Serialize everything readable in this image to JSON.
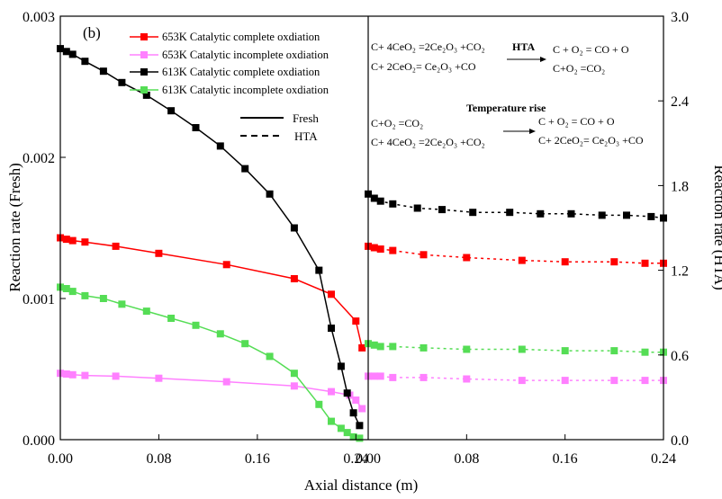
{
  "chart_data": {
    "type": "line",
    "panel_label": "(b)",
    "xlabel": "Axial distance (m)",
    "ylabel_left": "Reaction rate (Fresh)",
    "ylabel_right": "Reaction rate (HTA)",
    "left_panel": {
      "xlim": [
        0,
        0.25
      ],
      "xticks": [
        "0.00",
        "0.08",
        "0.16",
        "0.24"
      ],
      "ylim": [
        0,
        0.003
      ],
      "yticks": [
        "0.000",
        "0.001",
        "0.002",
        "0.003"
      ]
    },
    "right_panel": {
      "xlim": [
        0,
        0.24
      ],
      "xticks": [
        "0.00",
        "0.08",
        "0.16",
        "0.24"
      ],
      "ylim": [
        0,
        3.0
      ],
      "yticks": [
        "0.0",
        "0.6",
        "1.2",
        "1.8",
        "2.4",
        "3.0"
      ]
    },
    "series": [
      {
        "name": "653K Catalytic complete oxdiation",
        "color": "#ff0000",
        "fresh": {
          "x": [
            0.0,
            0.005,
            0.01,
            0.02,
            0.045,
            0.08,
            0.135,
            0.19,
            0.22,
            0.24,
            0.245
          ],
          "y": [
            0.00143,
            0.00142,
            0.00141,
            0.0014,
            0.00137,
            0.00132,
            0.00124,
            0.00114,
            0.00103,
            0.00084,
            0.00065
          ]
        },
        "hta": {
          "x": [
            0.0,
            0.005,
            0.01,
            0.02,
            0.045,
            0.08,
            0.125,
            0.16,
            0.2,
            0.225,
            0.24
          ],
          "y": [
            1.37,
            1.36,
            1.35,
            1.34,
            1.31,
            1.29,
            1.27,
            1.26,
            1.26,
            1.25,
            1.25
          ]
        }
      },
      {
        "name": "653K Catalytic incomplete oxdiation",
        "color": "#ff80ff",
        "fresh": {
          "x": [
            0.0,
            0.005,
            0.01,
            0.02,
            0.045,
            0.08,
            0.135,
            0.19,
            0.22,
            0.235,
            0.24,
            0.245
          ],
          "y": [
            0.00047,
            0.000465,
            0.00046,
            0.000455,
            0.00045,
            0.000435,
            0.00041,
            0.00038,
            0.00034,
            0.000315,
            0.00028,
            0.00022
          ]
        },
        "hta": {
          "x": [
            0.0,
            0.005,
            0.01,
            0.02,
            0.045,
            0.08,
            0.125,
            0.16,
            0.2,
            0.225,
            0.24
          ],
          "y": [
            0.45,
            0.45,
            0.45,
            0.44,
            0.44,
            0.43,
            0.42,
            0.42,
            0.42,
            0.42,
            0.42
          ]
        }
      },
      {
        "name": "613K Catalytic complete oxdiation",
        "color": "#000000",
        "fresh": {
          "x": [
            0.0,
            0.005,
            0.01,
            0.02,
            0.035,
            0.05,
            0.07,
            0.09,
            0.11,
            0.13,
            0.15,
            0.17,
            0.19,
            0.21,
            0.22,
            0.228,
            0.233,
            0.238,
            0.243
          ],
          "y": [
            0.00277,
            0.00275,
            0.00273,
            0.00268,
            0.00261,
            0.00253,
            0.00244,
            0.00233,
            0.00221,
            0.00208,
            0.00192,
            0.00174,
            0.0015,
            0.0012,
            0.00079,
            0.00052,
            0.00033,
            0.00019,
            0.0001
          ]
        },
        "hta": {
          "x": [
            0.0,
            0.005,
            0.01,
            0.02,
            0.04,
            0.06,
            0.085,
            0.115,
            0.14,
            0.165,
            0.19,
            0.21,
            0.23,
            0.24
          ],
          "y": [
            1.74,
            1.71,
            1.69,
            1.67,
            1.64,
            1.63,
            1.61,
            1.61,
            1.6,
            1.6,
            1.59,
            1.59,
            1.58,
            1.57
          ]
        }
      },
      {
        "name": "613K Catalytic incomplete oxdiation",
        "color": "#55dd55",
        "fresh": {
          "x": [
            0.0,
            0.005,
            0.01,
            0.02,
            0.035,
            0.05,
            0.07,
            0.09,
            0.11,
            0.13,
            0.15,
            0.17,
            0.19,
            0.21,
            0.22,
            0.228,
            0.233,
            0.238,
            0.243
          ],
          "y": [
            0.00108,
            0.00107,
            0.00105,
            0.00102,
            0.001,
            0.00096,
            0.00091,
            0.00086,
            0.00081,
            0.00075,
            0.00068,
            0.00059,
            0.00047,
            0.00025,
            0.00013,
            8e-05,
            5e-05,
            2e-05,
            1e-05
          ]
        },
        "hta": {
          "x": [
            0.0,
            0.005,
            0.01,
            0.02,
            0.045,
            0.08,
            0.125,
            0.16,
            0.2,
            0.225,
            0.24
          ],
          "y": [
            0.68,
            0.67,
            0.66,
            0.66,
            0.65,
            0.64,
            0.64,
            0.63,
            0.63,
            0.62,
            0.62
          ]
        }
      }
    ],
    "line_style_legend": [
      {
        "name": "Fresh",
        "style": "solid"
      },
      {
        "name": "HTA",
        "style": "dashed"
      }
    ],
    "annotations": {
      "block1_left": [
        "C+ 4CeO₂ =2Ce₂O₃ +CO₂",
        "C+ 2CeO₂= Ce₂O₃ +CO"
      ],
      "block1_arrow": "HTA",
      "block1_right": [
        "C + O₂ = CO + O",
        "C+O₂ =CO₂"
      ],
      "block2_left": [
        "C+O₂ =CO₂",
        "C+ 4CeO₂ =2Ce₂O₃ +CO₂"
      ],
      "block2_arrow": "Temperature rise",
      "block2_right": [
        "C + O₂ = CO + O",
        "C+ 2CeO₂= Ce₂O₃ +CO"
      ]
    }
  }
}
